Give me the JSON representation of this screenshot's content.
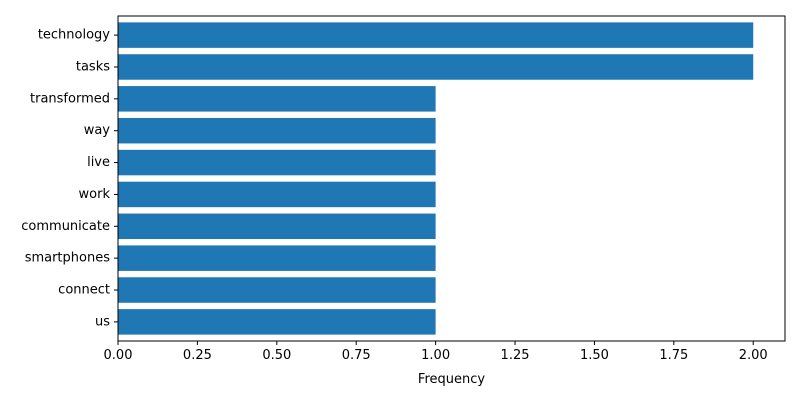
{
  "chart_data": {
    "type": "bar",
    "orientation": "horizontal",
    "categories": [
      "technology",
      "tasks",
      "transformed",
      "way",
      "live",
      "work",
      "communicate",
      "smartphones",
      "connect",
      "us"
    ],
    "values": [
      2,
      2,
      1,
      1,
      1,
      1,
      1,
      1,
      1,
      1
    ],
    "xlabel": "Frequency",
    "ylabel": "",
    "xlim": [
      0,
      2.1
    ],
    "xticks": [
      0.0,
      0.25,
      0.5,
      0.75,
      1.0,
      1.25,
      1.5,
      1.75,
      2.0
    ],
    "xtick_labels": [
      "0.00",
      "0.25",
      "0.50",
      "0.75",
      "1.00",
      "1.25",
      "1.50",
      "1.75",
      "2.00"
    ],
    "grid": false,
    "bar_color": "#1f77b4"
  }
}
